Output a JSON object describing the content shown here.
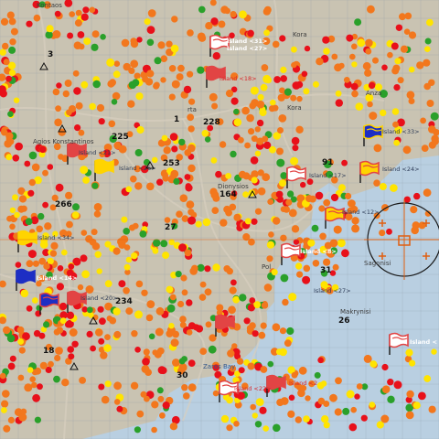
{
  "map": {
    "colors": {
      "land": "#c9c3b2",
      "sea": "#b9cfe1",
      "grid": "#8e9aa6",
      "road": "#d7cfbf",
      "marker_orange": "#f2771d",
      "marker_yellow": "#ffe400",
      "marker_red": "#e8101a",
      "marker_green": "#2aa02a",
      "marker_blue": "#1f5bd9",
      "flag_white": "#ffffff",
      "flag_red": "#e24444",
      "flag_blue": "#1d2ec4",
      "flag_yellow": "#ffd400",
      "crosshair": "#e05f10",
      "number_label": "#111111",
      "island_label_dark": "#2c3a55",
      "island_label_white": "#ffffff",
      "island_label_red": "#d9262a"
    },
    "place_names": [
      {
        "id": "agios-konstantinos",
        "text": "Agios Konstantinos"
      },
      {
        "id": "dionysios",
        "text": "Dionysios"
      },
      {
        "id": "sagonisi",
        "text": "Sagonisi"
      },
      {
        "id": "makrynisi",
        "text": "Makrynisi"
      },
      {
        "id": "zaros-bay",
        "text": "Zaros Bay"
      },
      {
        "id": "kora",
        "text": "Kora"
      },
      {
        "id": "kora2",
        "text": "Kora"
      },
      {
        "id": "anza",
        "text": "Anza"
      },
      {
        "id": "pollos",
        "text": "Pol"
      },
      {
        "id": "ekonta",
        "text": "Kontaos"
      },
      {
        "id": "rta",
        "text": "rta"
      }
    ],
    "grid_numbers": [
      {
        "id": "n3",
        "text": "3"
      },
      {
        "id": "n1",
        "text": "1"
      },
      {
        "id": "n228",
        "text": "228"
      },
      {
        "id": "n225",
        "text": "225"
      },
      {
        "id": "n253",
        "text": "253"
      },
      {
        "id": "n164",
        "text": "164"
      },
      {
        "id": "n266",
        "text": "266"
      },
      {
        "id": "n27",
        "text": "27"
      },
      {
        "id": "n91",
        "text": "91"
      },
      {
        "id": "n234",
        "text": "234"
      },
      {
        "id": "n31",
        "text": "31"
      },
      {
        "id": "n26",
        "text": "26"
      },
      {
        "id": "n18",
        "text": "18"
      },
      {
        "id": "n30",
        "text": "30"
      }
    ],
    "island_labels": [
      {
        "id": "island-31-top",
        "text": "Island <31>"
      },
      {
        "id": "island-alt-top",
        "text": "Island <27>"
      },
      {
        "id": "island-18",
        "text": "Island <18>"
      },
      {
        "id": "island-33",
        "text": "Island <33>"
      },
      {
        "id": "island-21",
        "text": "Island <21>"
      },
      {
        "id": "island-17",
        "text": "Island <17>"
      },
      {
        "id": "island-12",
        "text": "Island <12>"
      },
      {
        "id": "island-26",
        "text": "Island <26>"
      },
      {
        "id": "island-8",
        "text": "Island <8>"
      },
      {
        "id": "island-34",
        "text": "Island <34>"
      },
      {
        "id": "island-14",
        "text": "Island <14>"
      },
      {
        "id": "island-20",
        "text": "Island <20>"
      },
      {
        "id": "island-27",
        "text": "Island <27>"
      },
      {
        "id": "island-24",
        "text": "Island <24>"
      },
      {
        "id": "island-22",
        "text": "Island <22>"
      },
      {
        "id": "island-right",
        "text": "Island <"
      },
      {
        "id": "island-bottom",
        "text": "Island <2"
      }
    ]
  }
}
